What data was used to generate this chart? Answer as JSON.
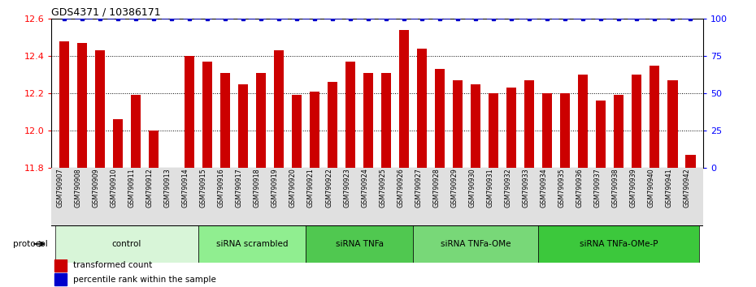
{
  "title": "GDS4371 / 10386171",
  "samples": [
    "GSM790907",
    "GSM790908",
    "GSM790909",
    "GSM790910",
    "GSM790911",
    "GSM790912",
    "GSM790913",
    "GSM790914",
    "GSM790915",
    "GSM790916",
    "GSM790917",
    "GSM790918",
    "GSM790919",
    "GSM790920",
    "GSM790921",
    "GSM790922",
    "GSM790923",
    "GSM790924",
    "GSM790925",
    "GSM790926",
    "GSM790927",
    "GSM790928",
    "GSM790929",
    "GSM790930",
    "GSM790931",
    "GSM790932",
    "GSM790933",
    "GSM790934",
    "GSM790935",
    "GSM790936",
    "GSM790937",
    "GSM790938",
    "GSM790939",
    "GSM790940",
    "GSM790941",
    "GSM790942"
  ],
  "bar_values": [
    12.48,
    12.47,
    12.43,
    12.06,
    12.19,
    12.0,
    11.77,
    12.4,
    12.37,
    12.31,
    12.25,
    12.31,
    12.43,
    12.19,
    12.21,
    12.26,
    12.37,
    12.31,
    12.31,
    12.54,
    12.44,
    12.33,
    12.27,
    12.25,
    12.2,
    12.23,
    12.27,
    12.2,
    12.2,
    12.3,
    12.16,
    12.19,
    12.3,
    12.35,
    12.27,
    11.87
  ],
  "percentile_values": [
    100,
    100,
    100,
    100,
    100,
    100,
    100,
    100,
    100,
    100,
    100,
    100,
    100,
    100,
    100,
    100,
    100,
    100,
    100,
    100,
    100,
    100,
    100,
    100,
    100,
    100,
    100,
    100,
    100,
    100,
    100,
    100,
    100,
    100,
    100,
    100
  ],
  "bar_color": "#cc0000",
  "percentile_color": "#0000cc",
  "ylim_left": [
    11.8,
    12.6
  ],
  "ylim_right": [
    0,
    100
  ],
  "yticks_left": [
    11.8,
    12.0,
    12.2,
    12.4,
    12.6
  ],
  "yticks_right": [
    0,
    25,
    50,
    75,
    100
  ],
  "grid_values": [
    12.0,
    12.2,
    12.4
  ],
  "groups": [
    {
      "label": "control",
      "start": 0,
      "end": 8,
      "color": "#d8f5d8"
    },
    {
      "label": "siRNA scrambled",
      "start": 8,
      "end": 14,
      "color": "#90ee90"
    },
    {
      "label": "siRNA TNFa",
      "start": 14,
      "end": 20,
      "color": "#50c850"
    },
    {
      "label": "siRNA TNFa-OMe",
      "start": 20,
      "end": 27,
      "color": "#78d878"
    },
    {
      "label": "siRNA TNFa-OMe-P",
      "start": 27,
      "end": 36,
      "color": "#3cc83c"
    }
  ],
  "protocol_label": "protocol",
  "legend_items": [
    {
      "label": "transformed count",
      "color": "#cc0000"
    },
    {
      "label": "percentile rank within the sample",
      "color": "#0000cc"
    }
  ],
  "bar_width": 0.55
}
